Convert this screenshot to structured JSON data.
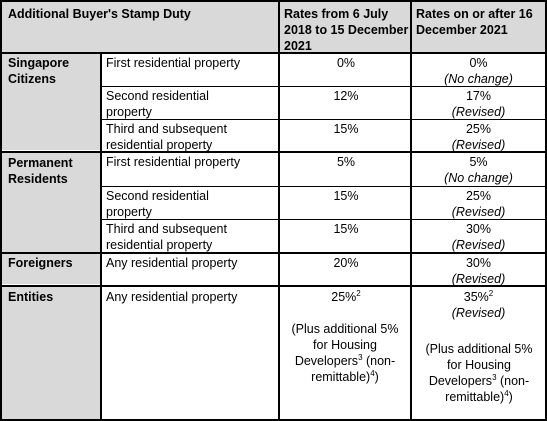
{
  "header": {
    "title": "Additional Buyer's Stamp Duty",
    "col_old": "Rates from 6 July 2018 to 15 December 2021",
    "col_new": "Rates on or after 16 December 2021"
  },
  "groups": [
    {
      "label": "Singapore Citizens",
      "rows": [
        {
          "property": "First residential property",
          "old": "0%",
          "new": "0%",
          "note": "(No change)"
        },
        {
          "property": "Second residential property",
          "old": "12%",
          "new": "17%",
          "note": "(Revised)"
        },
        {
          "property": "Third and subsequent residential property",
          "old": "15%",
          "new": "25%",
          "note": "(Revised)"
        }
      ]
    },
    {
      "label": "Permanent Residents",
      "rows": [
        {
          "property": "First residential property",
          "old": "5%",
          "new": "5%",
          "note": "(No change)"
        },
        {
          "property": "Second residential property",
          "old": "15%",
          "new": "25%",
          "note": "(Revised)"
        },
        {
          "property": "Third and subsequent residential property",
          "old": "15%",
          "new": "30%",
          "note": "(Revised)"
        }
      ]
    },
    {
      "label": "Foreigners",
      "rows": [
        {
          "property": "Any residential property",
          "old": "20%",
          "new": "30%",
          "note": "(Revised)"
        }
      ]
    },
    {
      "label": "Entities",
      "rows": [
        {
          "property": "Any residential property",
          "old": "25%",
          "old_sup": "2",
          "new": "35%",
          "new_sup": "2",
          "note": "(Revised)",
          "old_extra_1": "(Plus additional 5% for Housing Developers",
          "old_extra_sup1": "3",
          "old_extra_2": " (non-remittable)",
          "old_extra_sup2": "4",
          "old_extra_3": ")",
          "new_extra_1": "(Plus additional 5% for Housing Developers",
          "new_extra_sup1": "3",
          "new_extra_2": " (non-remittable)",
          "new_extra_sup2": "4",
          "new_extra_3": ")"
        }
      ]
    }
  ]
}
